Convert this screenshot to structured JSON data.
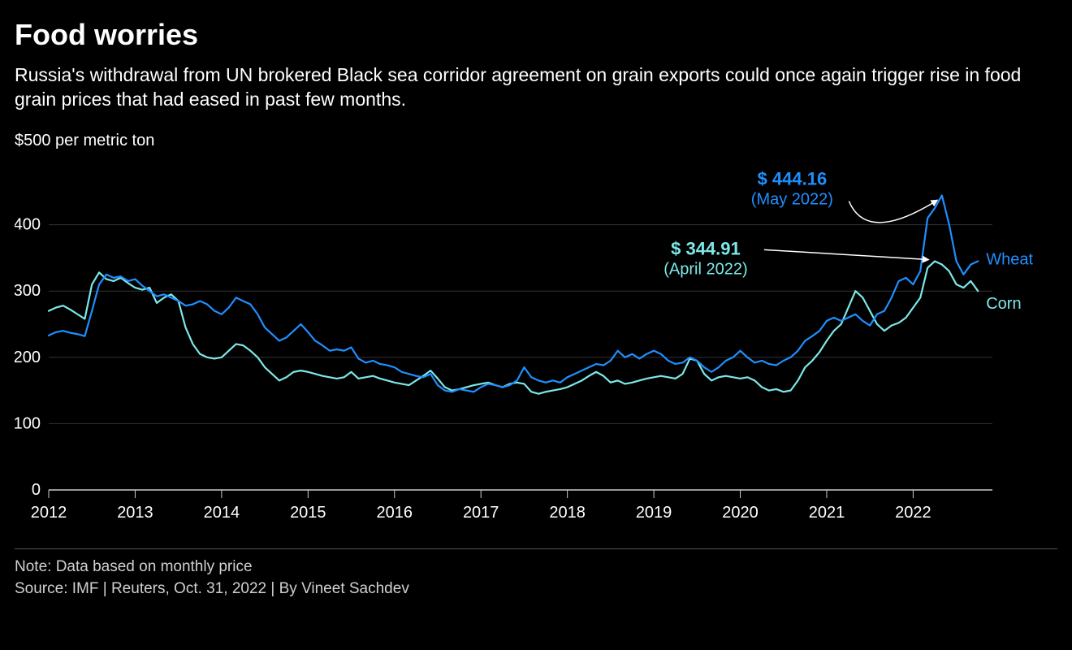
{
  "title": "Food worries",
  "subtitle": "Russia's withdrawal from UN brokered Black sea corridor agreement on grain exports could once again trigger rise in food grain prices that had eased in past few months.",
  "y_unit_label": "$500 per metric ton",
  "note": "Note: Data based on monthly price",
  "source": "Source: IMF | Reuters, Oct. 31, 2022 | By Vineet Sachdev",
  "chart": {
    "type": "line",
    "background_color": "#000000",
    "ylim": [
      0,
      500
    ],
    "yticks": [
      0,
      100,
      200,
      300,
      400
    ],
    "xlim": [
      2012,
      2022.917
    ],
    "xticks": [
      2012,
      2013,
      2014,
      2015,
      2016,
      2017,
      2018,
      2019,
      2020,
      2021,
      2022
    ],
    "xtick_labels": [
      "2012",
      "2013",
      "2014",
      "2015",
      "2016",
      "2017",
      "2018",
      "2019",
      "2020",
      "2021",
      "2022"
    ],
    "grid_color": "#333333",
    "baseline_color": "#cccccc",
    "tick_label_color": "#ffffff",
    "tick_label_fontsize": 20,
    "line_width": 2.2,
    "series": {
      "wheat": {
        "label": "Wheat",
        "color": "#1f8fff",
        "values": [
          [
            2012.0,
            233
          ],
          [
            2012.083,
            238
          ],
          [
            2012.167,
            240
          ],
          [
            2012.25,
            237
          ],
          [
            2012.333,
            235
          ],
          [
            2012.417,
            232
          ],
          [
            2012.5,
            270
          ],
          [
            2012.583,
            310
          ],
          [
            2012.667,
            325
          ],
          [
            2012.75,
            320
          ],
          [
            2012.833,
            322
          ],
          [
            2012.917,
            315
          ],
          [
            2013.0,
            318
          ],
          [
            2013.083,
            308
          ],
          [
            2013.167,
            300
          ],
          [
            2013.25,
            292
          ],
          [
            2013.333,
            295
          ],
          [
            2013.417,
            290
          ],
          [
            2013.5,
            285
          ],
          [
            2013.583,
            278
          ],
          [
            2013.667,
            280
          ],
          [
            2013.75,
            285
          ],
          [
            2013.833,
            280
          ],
          [
            2013.917,
            270
          ],
          [
            2014.0,
            265
          ],
          [
            2014.083,
            275
          ],
          [
            2014.167,
            290
          ],
          [
            2014.25,
            285
          ],
          [
            2014.333,
            280
          ],
          [
            2014.417,
            265
          ],
          [
            2014.5,
            245
          ],
          [
            2014.583,
            235
          ],
          [
            2014.667,
            225
          ],
          [
            2014.75,
            230
          ],
          [
            2014.833,
            240
          ],
          [
            2014.917,
            250
          ],
          [
            2015.0,
            238
          ],
          [
            2015.083,
            225
          ],
          [
            2015.167,
            218
          ],
          [
            2015.25,
            210
          ],
          [
            2015.333,
            212
          ],
          [
            2015.417,
            210
          ],
          [
            2015.5,
            215
          ],
          [
            2015.583,
            198
          ],
          [
            2015.667,
            192
          ],
          [
            2015.75,
            195
          ],
          [
            2015.833,
            190
          ],
          [
            2015.917,
            188
          ],
          [
            2016.0,
            185
          ],
          [
            2016.083,
            178
          ],
          [
            2016.167,
            175
          ],
          [
            2016.25,
            172
          ],
          [
            2016.333,
            170
          ],
          [
            2016.417,
            175
          ],
          [
            2016.5,
            158
          ],
          [
            2016.583,
            150
          ],
          [
            2016.667,
            148
          ],
          [
            2016.75,
            152
          ],
          [
            2016.833,
            150
          ],
          [
            2016.917,
            148
          ],
          [
            2017.0,
            155
          ],
          [
            2017.083,
            160
          ],
          [
            2017.167,
            158
          ],
          [
            2017.25,
            155
          ],
          [
            2017.333,
            158
          ],
          [
            2017.417,
            165
          ],
          [
            2017.5,
            185
          ],
          [
            2017.583,
            170
          ],
          [
            2017.667,
            165
          ],
          [
            2017.75,
            162
          ],
          [
            2017.833,
            165
          ],
          [
            2017.917,
            162
          ],
          [
            2018.0,
            170
          ],
          [
            2018.083,
            175
          ],
          [
            2018.167,
            180
          ],
          [
            2018.25,
            185
          ],
          [
            2018.333,
            190
          ],
          [
            2018.417,
            188
          ],
          [
            2018.5,
            195
          ],
          [
            2018.583,
            210
          ],
          [
            2018.667,
            200
          ],
          [
            2018.75,
            205
          ],
          [
            2018.833,
            198
          ],
          [
            2018.917,
            205
          ],
          [
            2019.0,
            210
          ],
          [
            2019.083,
            205
          ],
          [
            2019.167,
            195
          ],
          [
            2019.25,
            190
          ],
          [
            2019.333,
            192
          ],
          [
            2019.417,
            200
          ],
          [
            2019.5,
            195
          ],
          [
            2019.583,
            185
          ],
          [
            2019.667,
            178
          ],
          [
            2019.75,
            185
          ],
          [
            2019.833,
            195
          ],
          [
            2019.917,
            200
          ],
          [
            2020.0,
            210
          ],
          [
            2020.083,
            200
          ],
          [
            2020.167,
            192
          ],
          [
            2020.25,
            195
          ],
          [
            2020.333,
            190
          ],
          [
            2020.417,
            188
          ],
          [
            2020.5,
            195
          ],
          [
            2020.583,
            200
          ],
          [
            2020.667,
            210
          ],
          [
            2020.75,
            225
          ],
          [
            2020.833,
            232
          ],
          [
            2020.917,
            240
          ],
          [
            2021.0,
            255
          ],
          [
            2021.083,
            260
          ],
          [
            2021.167,
            255
          ],
          [
            2021.25,
            260
          ],
          [
            2021.333,
            265
          ],
          [
            2021.417,
            255
          ],
          [
            2021.5,
            248
          ],
          [
            2021.583,
            265
          ],
          [
            2021.667,
            270
          ],
          [
            2021.75,
            290
          ],
          [
            2021.833,
            315
          ],
          [
            2021.917,
            320
          ],
          [
            2022.0,
            310
          ],
          [
            2022.083,
            330
          ],
          [
            2022.167,
            410
          ],
          [
            2022.25,
            425
          ],
          [
            2022.333,
            444.16
          ],
          [
            2022.417,
            400
          ],
          [
            2022.5,
            345
          ],
          [
            2022.583,
            325
          ],
          [
            2022.667,
            340
          ],
          [
            2022.75,
            345
          ]
        ]
      },
      "corn": {
        "label": "Corn",
        "color": "#7de8e8",
        "values": [
          [
            2012.0,
            270
          ],
          [
            2012.083,
            275
          ],
          [
            2012.167,
            278
          ],
          [
            2012.25,
            272
          ],
          [
            2012.333,
            265
          ],
          [
            2012.417,
            258
          ],
          [
            2012.5,
            310
          ],
          [
            2012.583,
            328
          ],
          [
            2012.667,
            318
          ],
          [
            2012.75,
            315
          ],
          [
            2012.833,
            320
          ],
          [
            2012.917,
            312
          ],
          [
            2013.0,
            305
          ],
          [
            2013.083,
            302
          ],
          [
            2013.167,
            305
          ],
          [
            2013.25,
            282
          ],
          [
            2013.333,
            290
          ],
          [
            2013.417,
            295
          ],
          [
            2013.5,
            285
          ],
          [
            2013.583,
            245
          ],
          [
            2013.667,
            220
          ],
          [
            2013.75,
            205
          ],
          [
            2013.833,
            200
          ],
          [
            2013.917,
            198
          ],
          [
            2014.0,
            200
          ],
          [
            2014.083,
            210
          ],
          [
            2014.167,
            220
          ],
          [
            2014.25,
            218
          ],
          [
            2014.333,
            210
          ],
          [
            2014.417,
            200
          ],
          [
            2014.5,
            185
          ],
          [
            2014.583,
            175
          ],
          [
            2014.667,
            165
          ],
          [
            2014.75,
            170
          ],
          [
            2014.833,
            178
          ],
          [
            2014.917,
            180
          ],
          [
            2015.0,
            178
          ],
          [
            2015.083,
            175
          ],
          [
            2015.167,
            172
          ],
          [
            2015.25,
            170
          ],
          [
            2015.333,
            168
          ],
          [
            2015.417,
            170
          ],
          [
            2015.5,
            178
          ],
          [
            2015.583,
            168
          ],
          [
            2015.667,
            170
          ],
          [
            2015.75,
            172
          ],
          [
            2015.833,
            168
          ],
          [
            2015.917,
            165
          ],
          [
            2016.0,
            162
          ],
          [
            2016.083,
            160
          ],
          [
            2016.167,
            158
          ],
          [
            2016.25,
            165
          ],
          [
            2016.333,
            172
          ],
          [
            2016.417,
            180
          ],
          [
            2016.5,
            168
          ],
          [
            2016.583,
            155
          ],
          [
            2016.667,
            150
          ],
          [
            2016.75,
            152
          ],
          [
            2016.833,
            155
          ],
          [
            2016.917,
            158
          ],
          [
            2017.0,
            160
          ],
          [
            2017.083,
            162
          ],
          [
            2017.167,
            158
          ],
          [
            2017.25,
            155
          ],
          [
            2017.333,
            160
          ],
          [
            2017.417,
            162
          ],
          [
            2017.5,
            160
          ],
          [
            2017.583,
            148
          ],
          [
            2017.667,
            145
          ],
          [
            2017.75,
            148
          ],
          [
            2017.833,
            150
          ],
          [
            2017.917,
            152
          ],
          [
            2018.0,
            155
          ],
          [
            2018.083,
            160
          ],
          [
            2018.167,
            165
          ],
          [
            2018.25,
            172
          ],
          [
            2018.333,
            178
          ],
          [
            2018.417,
            172
          ],
          [
            2018.5,
            162
          ],
          [
            2018.583,
            165
          ],
          [
            2018.667,
            160
          ],
          [
            2018.75,
            162
          ],
          [
            2018.833,
            165
          ],
          [
            2018.917,
            168
          ],
          [
            2019.0,
            170
          ],
          [
            2019.083,
            172
          ],
          [
            2019.167,
            170
          ],
          [
            2019.25,
            168
          ],
          [
            2019.333,
            175
          ],
          [
            2019.417,
            198
          ],
          [
            2019.5,
            195
          ],
          [
            2019.583,
            175
          ],
          [
            2019.667,
            165
          ],
          [
            2019.75,
            170
          ],
          [
            2019.833,
            172
          ],
          [
            2019.917,
            170
          ],
          [
            2020.0,
            168
          ],
          [
            2020.083,
            170
          ],
          [
            2020.167,
            165
          ],
          [
            2020.25,
            155
          ],
          [
            2020.333,
            150
          ],
          [
            2020.417,
            152
          ],
          [
            2020.5,
            148
          ],
          [
            2020.583,
            150
          ],
          [
            2020.667,
            165
          ],
          [
            2020.75,
            185
          ],
          [
            2020.833,
            195
          ],
          [
            2020.917,
            208
          ],
          [
            2021.0,
            225
          ],
          [
            2021.083,
            240
          ],
          [
            2021.167,
            250
          ],
          [
            2021.25,
            275
          ],
          [
            2021.333,
            300
          ],
          [
            2021.417,
            290
          ],
          [
            2021.5,
            270
          ],
          [
            2021.583,
            250
          ],
          [
            2021.667,
            240
          ],
          [
            2021.75,
            248
          ],
          [
            2021.833,
            252
          ],
          [
            2021.917,
            260
          ],
          [
            2022.0,
            275
          ],
          [
            2022.083,
            290
          ],
          [
            2022.167,
            335
          ],
          [
            2022.25,
            344.91
          ],
          [
            2022.333,
            340
          ],
          [
            2022.417,
            330
          ],
          [
            2022.5,
            310
          ],
          [
            2022.583,
            305
          ],
          [
            2022.667,
            315
          ],
          [
            2022.75,
            300
          ]
        ]
      }
    },
    "annotations": {
      "wheat_peak": {
        "price": "$ 444.16",
        "date": "(May 2022)",
        "color": "#1f8fff"
      },
      "corn_peak": {
        "price": "$ 344.91",
        "date": "(April 2022)",
        "color": "#7de8e8"
      }
    }
  }
}
